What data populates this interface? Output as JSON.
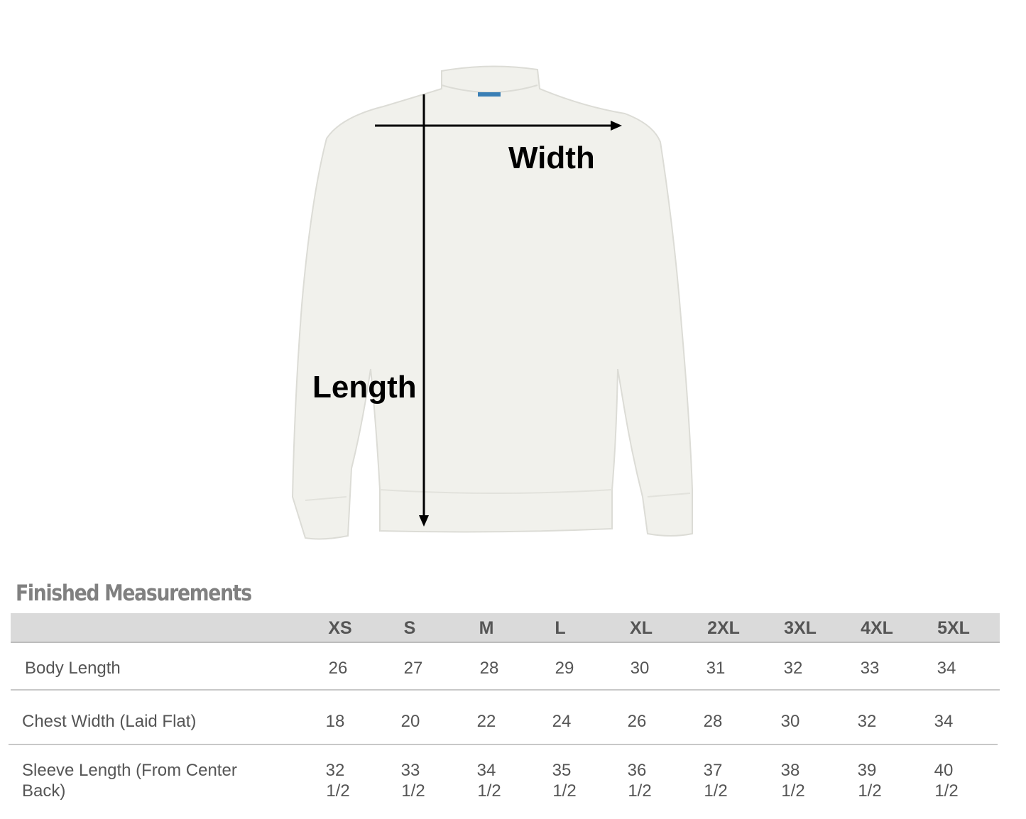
{
  "diagram": {
    "width_label": "Width",
    "length_label": "Length",
    "garment_color": "#f1f1ec"
  },
  "table": {
    "title": "Finished Measurements",
    "sizes": [
      "XS",
      "S",
      "M",
      "L",
      "XL",
      "2XL",
      "3XL",
      "4XL",
      "5XL"
    ],
    "rows": [
      {
        "label": "Body Length",
        "values": [
          "26",
          "27",
          "28",
          "29",
          "30",
          "31",
          "32",
          "33",
          "34"
        ]
      },
      {
        "label": "Chest Width (Laid Flat)",
        "values": [
          "18",
          "20",
          "22",
          "24",
          "26",
          "28",
          "30",
          "32",
          "34"
        ]
      },
      {
        "label_line1": "Sleeve Length (From Center",
        "label_line2": "Back)",
        "values_line1": [
          "32",
          "33",
          "34",
          "35",
          "36",
          "37",
          "38",
          "39",
          "40"
        ],
        "values_line2": [
          "1/2",
          "1/2",
          "1/2",
          "1/2",
          "1/2",
          "1/2",
          "1/2",
          "1/2",
          "1/2"
        ]
      }
    ]
  }
}
